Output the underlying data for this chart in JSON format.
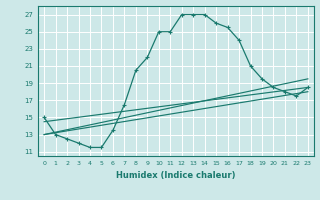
{
  "xlabel": "Humidex (Indice chaleur)",
  "ylabel": "",
  "bg_color": "#cde8e8",
  "grid_color": "#b0d4d4",
  "line_color": "#1a7a6e",
  "xlim": [
    -0.5,
    23.5
  ],
  "ylim": [
    10.5,
    28.0
  ],
  "yticks": [
    11,
    13,
    15,
    17,
    19,
    21,
    23,
    25,
    27
  ],
  "xticks": [
    0,
    1,
    2,
    3,
    4,
    5,
    6,
    7,
    8,
    9,
    10,
    11,
    12,
    13,
    14,
    15,
    16,
    17,
    18,
    19,
    20,
    21,
    22,
    23
  ],
  "series": [
    {
      "x": [
        0,
        1,
        2,
        3,
        4,
        5,
        6,
        7,
        8,
        9,
        10,
        11,
        12,
        13,
        14,
        15,
        16,
        17,
        18,
        19,
        20,
        21,
        22,
        23
      ],
      "y": [
        15,
        13,
        12.5,
        12,
        11.5,
        11.5,
        13.5,
        16.5,
        20.5,
        22,
        25,
        25,
        27,
        27,
        27,
        26,
        25.5,
        24,
        21,
        19.5,
        18.5,
        18,
        17.5,
        18.5
      ]
    },
    {
      "x": [
        0,
        23
      ],
      "y": [
        13.0,
        19.5
      ]
    },
    {
      "x": [
        0,
        23
      ],
      "y": [
        13.0,
        18.0
      ]
    },
    {
      "x": [
        0,
        23
      ],
      "y": [
        14.5,
        18.5
      ]
    }
  ]
}
